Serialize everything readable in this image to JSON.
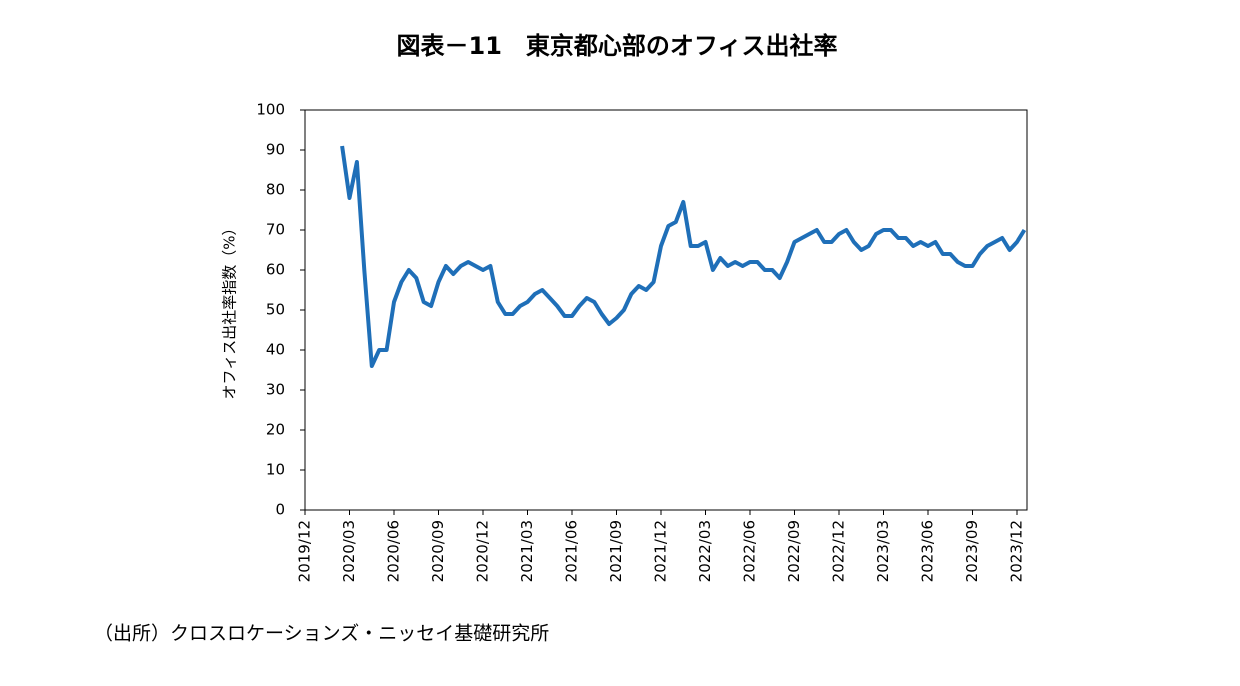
{
  "chart_data": {
    "type": "line",
    "title": "図表－11　東京都心部のオフィス出社率",
    "y_label": "オフィス出社率指数（%）",
    "source": "（出所）クロスロケーションズ・ニッセイ基礎研究所",
    "categories": [
      "2019/12",
      null,
      null,
      null,
      null,
      null,
      "2020/03",
      null,
      null,
      null,
      null,
      null,
      "2020/06",
      null,
      null,
      null,
      null,
      null,
      "2020/09",
      null,
      null,
      null,
      null,
      null,
      "2020/12",
      null,
      null,
      null,
      null,
      null,
      "2021/03",
      null,
      null,
      null,
      null,
      null,
      "2021/06",
      null,
      null,
      null,
      null,
      null,
      "2021/09",
      null,
      null,
      null,
      null,
      null,
      "2021/12",
      null,
      null,
      null,
      null,
      null,
      "2022/03",
      null,
      null,
      null,
      null,
      null,
      "2022/06",
      null,
      null,
      null,
      null,
      null,
      "2022/09",
      null,
      null,
      null,
      null,
      null,
      "2022/12",
      null,
      null,
      null,
      null,
      null,
      "2023/03",
      null,
      null,
      null,
      null,
      null,
      "2023/06",
      null,
      null,
      null,
      null,
      null,
      "2023/09",
      null,
      null,
      null,
      null,
      null,
      "2023/12",
      null
    ],
    "series": [
      {
        "name": "オフィス出社率指数",
        "color": "#1f6fb8",
        "values": [
          null,
          null,
          null,
          null,
          null,
          91,
          78,
          87,
          60,
          36,
          40,
          40,
          52,
          57,
          60,
          58,
          52,
          51,
          57,
          61,
          59,
          61,
          62,
          61,
          60,
          61,
          52,
          49,
          49,
          51,
          52,
          54,
          55,
          53,
          51,
          48.5,
          48.5,
          51,
          53,
          52,
          49,
          46.5,
          48,
          50,
          54,
          56,
          55,
          57,
          66,
          71,
          72,
          77,
          66,
          66,
          67,
          60,
          63,
          61,
          62,
          61,
          62,
          62,
          60,
          60,
          58,
          62,
          67,
          68,
          69,
          70,
          67,
          67,
          69,
          70,
          67,
          65,
          66,
          69,
          70,
          70,
          68,
          68,
          66,
          67,
          66,
          67,
          64,
          64,
          62,
          61,
          61,
          64,
          66,
          67,
          68,
          65,
          67,
          70
        ]
      }
    ],
    "ylim": [
      0,
      100
    ],
    "yticks": [
      0,
      10,
      20,
      30,
      40,
      50,
      60,
      70,
      80,
      90,
      100
    ],
    "grid": false
  }
}
